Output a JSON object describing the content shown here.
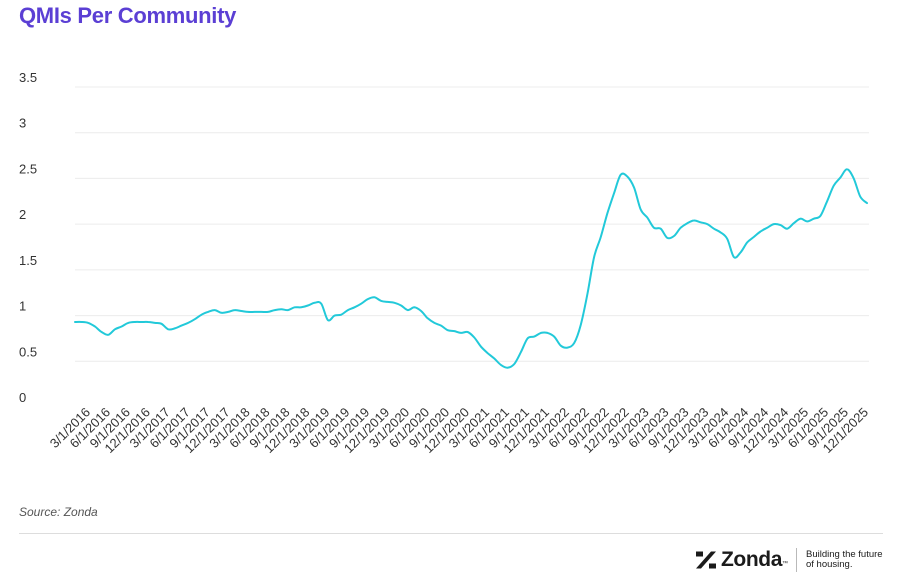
{
  "title": "QMIs Per Community",
  "source": "Source: Zonda",
  "brand": {
    "name": "Zonda",
    "trademark": "™",
    "tagline": "Building the future of housing.",
    "logo_icon": "zonda-mark-icon"
  },
  "colors": {
    "title": "#5b3fd4",
    "line": "#22c9d9",
    "grid": "#ececec",
    "text": "#333333"
  },
  "chart_data": {
    "type": "line",
    "title": "QMIs Per Community",
    "xlabel": "",
    "ylabel": "",
    "ylim": [
      0,
      3.5
    ],
    "yticks": [
      "0",
      "0.5",
      "1",
      "1.5",
      "2",
      "2.5",
      "3",
      "3.5"
    ],
    "grid": true,
    "legend": "none",
    "x_tick_labels": [
      "3/1/2016",
      "6/1/2016",
      "9/1/2016",
      "12/1/2016",
      "3/1/2017",
      "6/1/2017",
      "9/1/2017",
      "12/1/2017",
      "3/1/2018",
      "6/1/2018",
      "9/1/2018",
      "12/1/2018",
      "3/1/2019",
      "6/1/2019",
      "9/1/2019",
      "12/1/2019",
      "3/1/2020",
      "6/1/2020",
      "9/1/2020",
      "12/1/2020",
      "3/1/2021",
      "6/1/2021",
      "9/1/2021",
      "12/1/2021",
      "3/1/2022",
      "6/1/2022",
      "9/1/2022",
      "12/1/2022",
      "3/1/2023",
      "6/1/2023",
      "9/1/2023",
      "12/1/2023",
      "3/1/2024",
      "6/1/2024",
      "9/1/2024",
      "12/1/2024",
      "3/1/2025",
      "6/1/2025",
      "9/1/2025",
      "12/1/2025"
    ],
    "series": [
      {
        "values": [
          0.93,
          0.93,
          0.92,
          0.88,
          0.82,
          0.79,
          0.85,
          0.88,
          0.92,
          0.93,
          0.93,
          0.93,
          0.92,
          0.91,
          0.85,
          0.86,
          0.89,
          0.92,
          0.96,
          1.01,
          1.04,
          1.06,
          1.03,
          1.04,
          1.06,
          1.05,
          1.04,
          1.04,
          1.04,
          1.04,
          1.06,
          1.07,
          1.06,
          1.09,
          1.09,
          1.11,
          1.14,
          1.13,
          0.95,
          1.0,
          1.01,
          1.06,
          1.09,
          1.13,
          1.18,
          1.2,
          1.16,
          1.15,
          1.14,
          1.11,
          1.06,
          1.09,
          1.05,
          0.97,
          0.92,
          0.89,
          0.84,
          0.83,
          0.81,
          0.82,
          0.76,
          0.66,
          0.59,
          0.53,
          0.46,
          0.43,
          0.47,
          0.6,
          0.75,
          0.77,
          0.81,
          0.81,
          0.77,
          0.67,
          0.65,
          0.7,
          0.9,
          1.24,
          1.64,
          1.86,
          2.12,
          2.34,
          2.54,
          2.52,
          2.4,
          2.16,
          2.07,
          1.96,
          1.95,
          1.85,
          1.87,
          1.96,
          2.01,
          2.04,
          2.02,
          2.0,
          1.95,
          1.91,
          1.84,
          1.64,
          1.69,
          1.8,
          1.86,
          1.92,
          1.96,
          2.0,
          1.99,
          1.95,
          2.01,
          2.06,
          2.03,
          2.06,
          2.09,
          2.25,
          2.42,
          2.51,
          2.6,
          2.5,
          2.3,
          2.23
        ]
      }
    ]
  }
}
